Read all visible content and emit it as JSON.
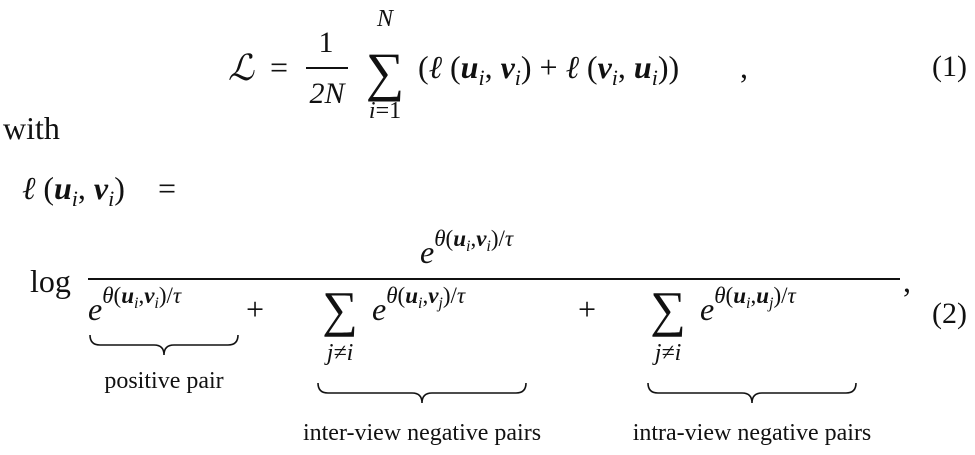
{
  "equation_1": {
    "loss_symbol": "ℒ",
    "equals": "=",
    "numerator": "1",
    "denominator_n": "2N",
    "sum_upper": "N",
    "sum_lower_var": "i",
    "sum_lower_eq": "=1",
    "comma": ",",
    "number": "(1)"
  },
  "connector": "with",
  "equation_2": {
    "lhs_ell": "ℓ",
    "equals": "=",
    "log": "log",
    "comma": ",",
    "number": "(2)",
    "labels": {
      "positive": "positive pair",
      "inter": "inter-view negative pairs",
      "intra": "intra-view negative pairs"
    },
    "sum_index": "j≠i"
  }
}
